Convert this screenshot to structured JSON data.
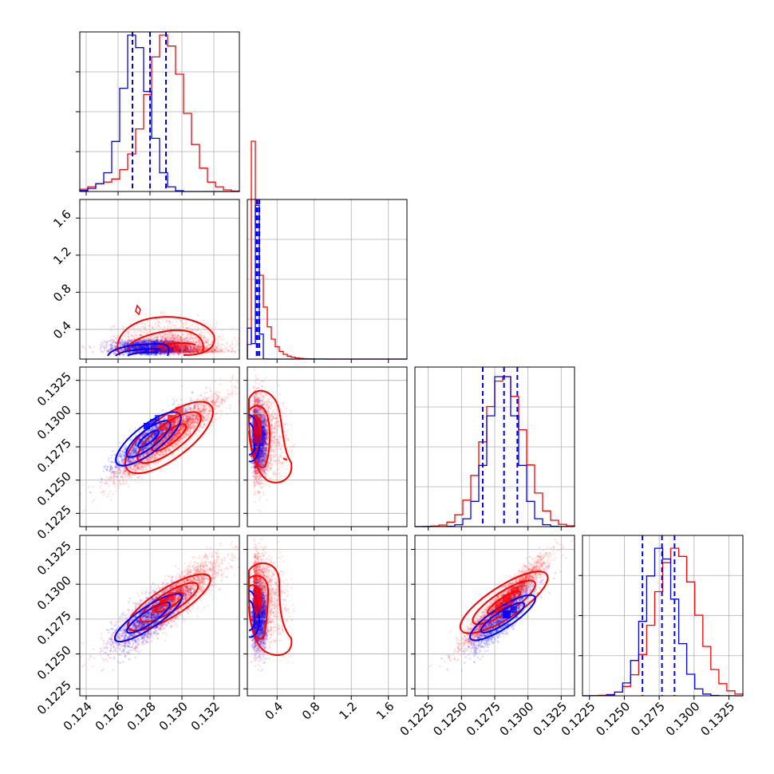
{
  "colors": {
    "series_a": "#0000ff",
    "series_b": "#ff0000",
    "grid": "#b0b0b0"
  },
  "chart_data": {
    "type": "corner",
    "grid": true,
    "legend": "none",
    "series": [
      {
        "color": "#0000ff",
        "means": [
          0.1279,
          0.19,
          0.1281,
          0.1276
        ],
        "sds": [
          0.0011,
          0.01,
          0.0011,
          0.0011
        ],
        "quantiles_dashed": [
          [
            0.1269,
            0.128,
            0.129
          ],
          [
            0.18,
            0.19,
            0.21
          ],
          [
            0.1266,
            0.1282,
            0.1292
          ],
          [
            0.1263,
            0.1277,
            0.1286
          ]
        ]
      },
      {
        "color": "#ff0000",
        "means": [
          0.1292,
          0.28,
          0.1282,
          0.1287
        ],
        "sds": [
          0.0016,
          0.15,
          0.0015,
          0.0015
        ],
        "quantiles_dashed": []
      }
    ],
    "axes": [
      {
        "range": [
          0.1236,
          0.1336
        ],
        "ticks": [
          "0.124",
          "0.126",
          "0.128",
          "0.130",
          "0.132"
        ],
        "tick_values": [
          0.124,
          0.126,
          0.128,
          0.13,
          0.132
        ]
      },
      {
        "range": [
          0.08,
          1.8
        ],
        "ticks": [
          "0.4",
          "0.8",
          "1.2",
          "1.6"
        ],
        "tick_values": [
          0.4,
          0.8,
          1.2,
          1.6
        ]
      },
      {
        "range": [
          0.1215,
          0.1335
        ],
        "ticks": [
          "0.1225",
          "0.1250",
          "0.1275",
          "0.1300",
          "0.1325"
        ],
        "tick_values": [
          0.1225,
          0.125,
          0.1275,
          0.13,
          0.1325
        ]
      },
      {
        "range": [
          0.122,
          0.1335
        ],
        "ticks": [
          "0.1225",
          "0.1250",
          "0.1275",
          "0.1300",
          "0.1325"
        ],
        "tick_values": [
          0.1225,
          0.125,
          0.1275,
          0.13,
          0.1325
        ]
      }
    ],
    "histograms": {
      "bins": 20,
      "series_a_shape": [
        0.6,
        2,
        5,
        12,
        32,
        66,
        100,
        92,
        64,
        34,
        12,
        3,
        0.5,
        0,
        0,
        0,
        0,
        0,
        0,
        0
      ],
      "series_b_shape": [
        1.5,
        3,
        5,
        6,
        8,
        14,
        24,
        40,
        62,
        86,
        100,
        93,
        75,
        50,
        30,
        15,
        6,
        3,
        1,
        0.3
      ]
    }
  }
}
